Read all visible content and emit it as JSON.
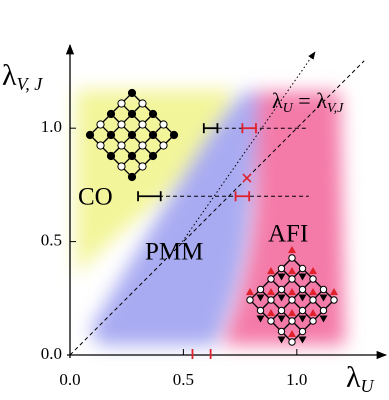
{
  "chart_data": {
    "type": "phase",
    "xlabel": {
      "symbol": "λ",
      "subscript": "U"
    },
    "ylabel": {
      "symbol": "λ",
      "subscript": "V, J"
    },
    "diagonal_label": {
      "lhs": "λ",
      "lhs_subscript": "U",
      "equals": " = ",
      "rhs": "λ",
      "rhs_subscript": "V,J"
    },
    "regions": [
      "CO",
      "PMM",
      "AFI"
    ],
    "xlim": [
      0,
      1.38
    ],
    "ylim": [
      0,
      1.38
    ],
    "xticks": [
      {
        "value": 0,
        "label": "0.0"
      },
      0.5,
      {
        "value": 1,
        "label": "1.0"
      }
    ],
    "yticks": [
      {
        "value": 0,
        "label": "0.0"
      },
      0.5,
      {
        "value": 1,
        "label": "1.0"
      }
    ],
    "co_boundary": {
      "color": "#000000",
      "points": [
        {
          "x": 0.62,
          "y": 1,
          "xerr": 0.03
        },
        {
          "x": 0.35,
          "y": 0.7,
          "xerr": 0.05
        }
      ]
    },
    "afi_boundary": {
      "color": "#e0202a",
      "points": [
        {
          "x": 0.79,
          "y": 1,
          "xerr": 0.03
        },
        {
          "x": 0.76,
          "y": 0.7,
          "xerr": 0.03
        }
      ]
    },
    "diagonal_point": {
      "x": 0.78,
      "y": 0.78,
      "color": "#e0202a"
    },
    "axis_marks": {
      "color": "#e0202a",
      "x": [
        0.54,
        0.62
      ]
    }
  }
}
